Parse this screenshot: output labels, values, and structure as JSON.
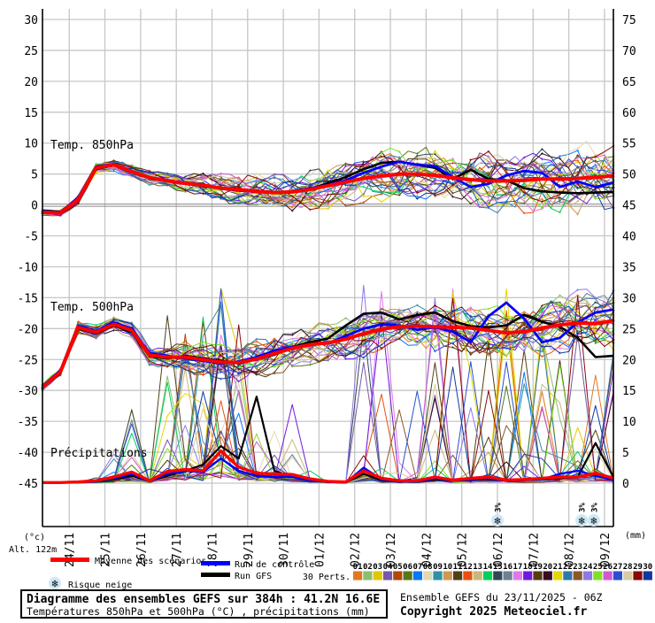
{
  "axes": {
    "left_unit": "(°c)",
    "right_unit": "(mm)",
    "altitude": "Alt. 122m",
    "left_ticks": [
      "30",
      "25",
      "20",
      "15",
      "10",
      "5",
      "0",
      "-5",
      "-10",
      "-15",
      "-20",
      "-25",
      "-30",
      "-35",
      "-40",
      "-45"
    ],
    "right_ticks": [
      "75",
      "70",
      "65",
      "60",
      "55",
      "50",
      "45",
      "40",
      "35",
      "30",
      "25",
      "20",
      "15",
      "10",
      "5",
      "0"
    ],
    "dates": [
      "24/11",
      "25/11",
      "26/11",
      "27/11",
      "28/11",
      "29/11",
      "30/11",
      "01/12",
      "02/12",
      "03/12",
      "04/12",
      "05/12",
      "06/12",
      "07/12",
      "08/12",
      "09/12"
    ]
  },
  "panel_labels": {
    "temp850": "Temp. 850hPa",
    "temp500": "Temp. 500hPa",
    "precip": "Précipitations"
  },
  "legend": {
    "mean": "Moyenne des scénarios",
    "control": "Run de contrôle",
    "gfs": "Run GFS",
    "perts": "30 Perts.",
    "snow": "Risque neige"
  },
  "perturbations": {
    "numbers": [
      "01",
      "02",
      "03",
      "04",
      "05",
      "06",
      "07",
      "08",
      "09",
      "10",
      "11",
      "12",
      "13",
      "14",
      "15",
      "16",
      "17",
      "18",
      "19",
      "20",
      "21",
      "22",
      "23",
      "24",
      "25",
      "26",
      "27",
      "28",
      "29",
      "30"
    ],
    "colors": [
      "#e07820",
      "#8cbe70",
      "#e0c800",
      "#7858a8",
      "#b04808",
      "#587818",
      "#0878f8",
      "#e0d8b0",
      "#3090a8",
      "#d09850",
      "#504018",
      "#e85010",
      "#c8b878",
      "#00d058",
      "#304858",
      "#708090",
      "#e078e8",
      "#7018e0",
      "#583c10",
      "#380c20",
      "#e0d800",
      "#3078a8",
      "#885828",
      "#9078e8",
      "#80e028",
      "#d058d0",
      "#2850d0",
      "#d8cca0",
      "#880808",
      "#1038a0"
    ]
  },
  "snow_markers": {
    "label": "3%",
    "positions_days": [
      12.75,
      15.11,
      15.45
    ]
  },
  "footer": {
    "left_title": "Diagramme des ensembles GEFS sur 384h : 41.2N 16.6E",
    "left_subtitle": "Températures 850hPa et 500hPa (°C) , précipitations (mm)",
    "right_line1": "Ensemble GEFS du 23/11/2025 - 06Z",
    "right_line2": "Copyright 2025 Meteociel.fr"
  },
  "colors": {
    "mean": "#ff0000",
    "control": "#0000ff",
    "gfs": "#000000",
    "grid": "#c6c6c6",
    "grid_dark": "#8a8a8a",
    "axis": "#000000",
    "snowflake_fill": "#cfe8f6",
    "snowflake_glyph": "#4aa0d8",
    "snow_label": "#2222cc"
  },
  "chart_data": {
    "type": "line",
    "title": "Diagramme des ensembles GEFS sur 384h : 41.2N 16.6E",
    "run": "Ensemble GEFS du 23/11/2025 - 06Z",
    "members": 30,
    "time_start": "23/11 06Z",
    "time_step_days": 0.5,
    "time_span_days": 16,
    "temp_axis_c": {
      "min": -45,
      "max": 30,
      "tick": 5
    },
    "precip_axis_mm": {
      "min": 0,
      "max": 75,
      "tick": 5
    },
    "x_dates": [
      "24/11",
      "25/11",
      "26/11",
      "27/11",
      "28/11",
      "29/11",
      "30/11",
      "01/12",
      "02/12",
      "03/12",
      "04/12",
      "05/12",
      "06/12",
      "07/12",
      "08/12",
      "09/12"
    ],
    "panels": {
      "temp850": {
        "label": "Temp. 850hPa",
        "mean": [
          -1.2,
          -1.3,
          0.9,
          6.0,
          6.5,
          5.4,
          4.4,
          3.9,
          3.5,
          3.2,
          2.7,
          2.5,
          2.2,
          2.0,
          2.1,
          2.5,
          3.1,
          3.7,
          4.3,
          4.7,
          5.0,
          5.0,
          4.8,
          4.4,
          4.1,
          3.9,
          3.9,
          4.0,
          4.2,
          4.2,
          4.3,
          4.5,
          4.7
        ],
        "control": [
          -1.0,
          -1.2,
          1.2,
          6.2,
          6.6,
          5.5,
          4.5,
          4.0,
          3.4,
          3.1,
          2.6,
          2.4,
          2.1,
          2.0,
          2.2,
          2.7,
          3.2,
          4.0,
          5.2,
          6.2,
          7.0,
          6.5,
          6.3,
          4.5,
          2.9,
          3.4,
          4.8,
          5.5,
          5.2,
          2.9,
          3.8,
          2.9,
          3.6
        ],
        "gfs": [
          -0.9,
          -1.1,
          1.0,
          5.8,
          6.4,
          5.3,
          4.3,
          3.8,
          3.6,
          3.0,
          2.8,
          2.4,
          2.3,
          2.1,
          2.0,
          2.6,
          3.5,
          4.5,
          5.8,
          6.8,
          7.0,
          6.5,
          6.0,
          4.2,
          5.7,
          4.2,
          4.0,
          2.7,
          2.2,
          2.0,
          1.9,
          2.0,
          2.1
        ],
        "spread": [
          0.4,
          0.45,
          0.6,
          0.7,
          0.8,
          0.95,
          1.1,
          1.3,
          1.5,
          1.7,
          1.9,
          2.1,
          2.3,
          2.5,
          2.7,
          2.85,
          3.0,
          3.1,
          3.2,
          3.3,
          3.4,
          3.5,
          3.6,
          3.7,
          3.8,
          3.9,
          4.0,
          4.2,
          4.4,
          4.6,
          4.8,
          5.0,
          5.2
        ]
      },
      "temp500": {
        "label": "Temp. 500hPa",
        "mean": [
          -29.5,
          -27.0,
          -19.8,
          -20.6,
          -19.3,
          -20.3,
          -24.3,
          -24.6,
          -24.6,
          -25.0,
          -25.4,
          -25.5,
          -24.9,
          -24.0,
          -23.2,
          -22.6,
          -22.3,
          -21.7,
          -20.8,
          -20.1,
          -19.7,
          -19.6,
          -19.7,
          -19.8,
          -19.9,
          -20.3,
          -20.7,
          -20.5,
          -19.9,
          -19.4,
          -19.1,
          -19.2,
          -18.7
        ],
        "control": [
          -29.3,
          -26.8,
          -19.6,
          -20.4,
          -19.0,
          -20.0,
          -24.0,
          -24.4,
          -24.8,
          -25.2,
          -25.6,
          -25.3,
          -24.6,
          -23.6,
          -23.0,
          -22.6,
          -22.4,
          -21.2,
          -20.0,
          -19.3,
          -19.5,
          -20.2,
          -19.8,
          -20.5,
          -22.2,
          -18.0,
          -15.8,
          -18.4,
          -22.2,
          -21.5,
          -19.0,
          -17.4,
          -16.9
        ],
        "gfs": [
          -29.6,
          -27.2,
          -20.0,
          -20.8,
          -19.5,
          -20.6,
          -24.5,
          -24.8,
          -24.4,
          -24.8,
          -25.2,
          -25.6,
          -25.0,
          -24.2,
          -23.0,
          -22.2,
          -21.6,
          -19.5,
          -17.6,
          -17.4,
          -18.5,
          -17.8,
          -17.4,
          -18.8,
          -19.6,
          -19.8,
          -19.5,
          -17.8,
          -18.9,
          -19.7,
          -21.5,
          -24.6,
          -24.4
        ],
        "spread": [
          0.5,
          0.6,
          0.8,
          0.9,
          1.0,
          1.2,
          1.6,
          1.9,
          2.2,
          2.4,
          2.5,
          2.6,
          2.7,
          2.8,
          2.8,
          2.8,
          2.9,
          2.9,
          3.0,
          3.0,
          3.1,
          3.1,
          3.2,
          3.3,
          3.4,
          3.5,
          3.6,
          3.7,
          3.8,
          3.9,
          4.0,
          4.2,
          4.4
        ]
      },
      "precip": {
        "label": "Précipitations",
        "mean": [
          0.1,
          0.1,
          0.2,
          0.4,
          1.0,
          1.8,
          0.4,
          1.9,
          2.2,
          2.0,
          5.2,
          2.6,
          1.6,
          1.5,
          1.4,
          0.7,
          0.3,
          0.2,
          2.0,
          0.8,
          0.4,
          0.4,
          1.0,
          0.5,
          0.8,
          1.0,
          0.5,
          0.6,
          0.8,
          1.0,
          1.0,
          1.6,
          0.8
        ],
        "control": [
          0.1,
          0.1,
          0.2,
          0.3,
          0.8,
          1.5,
          0.3,
          1.5,
          2.0,
          1.8,
          4.0,
          2.0,
          1.2,
          1.0,
          1.0,
          0.5,
          0.2,
          0.1,
          2.5,
          0.6,
          0.3,
          0.3,
          0.8,
          0.4,
          0.6,
          0.8,
          0.4,
          0.5,
          0.6,
          1.5,
          2.0,
          1.2,
          0.5
        ],
        "gfs": [
          0.1,
          0.1,
          0.2,
          0.3,
          0.6,
          1.2,
          0.3,
          1.2,
          2.0,
          3.0,
          6.0,
          4.0,
          14.0,
          2.0,
          1.0,
          0.5,
          0.2,
          0.1,
          1.5,
          0.5,
          0.3,
          0.3,
          0.6,
          0.4,
          0.5,
          0.6,
          0.4,
          0.5,
          0.6,
          0.8,
          1.0,
          6.5,
          1.0
        ]
      }
    }
  }
}
